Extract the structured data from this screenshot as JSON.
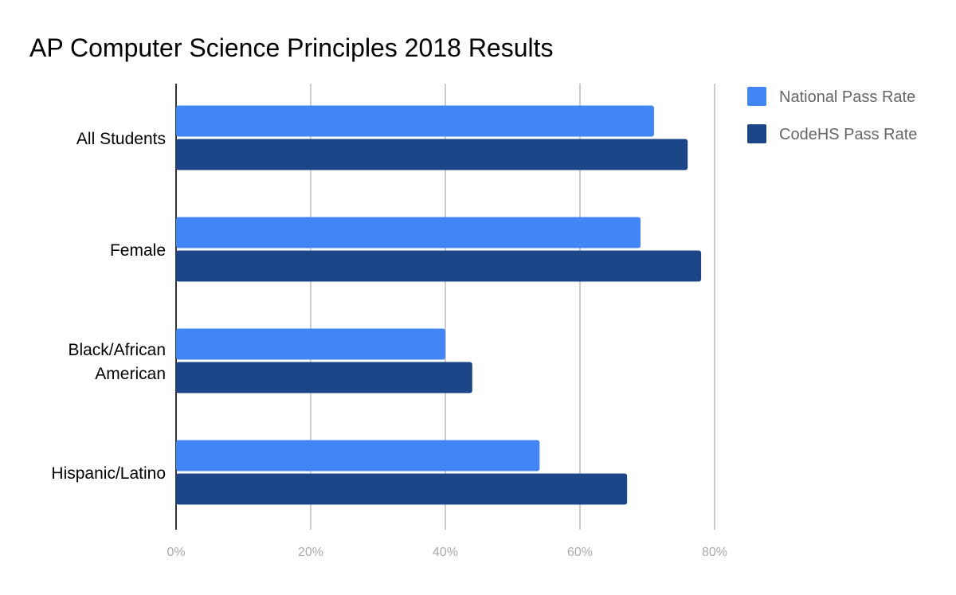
{
  "chart_data": {
    "type": "bar",
    "orientation": "horizontal",
    "title": "AP Computer Science Principles 2018 Results",
    "categories": [
      "All Students",
      "Female",
      "Black/African American",
      "Hispanic/Latino"
    ],
    "category_lines": [
      [
        "All Students"
      ],
      [
        "Female"
      ],
      [
        "Black/African",
        "American"
      ],
      [
        "Hispanic/Latino"
      ]
    ],
    "series": [
      {
        "name": "National Pass Rate",
        "color": "#4285f4",
        "values": [
          71,
          69,
          40,
          54
        ]
      },
      {
        "name": "CodeHS Pass Rate",
        "color": "#1c4587",
        "values": [
          76,
          78,
          44,
          67
        ]
      }
    ],
    "xlim": [
      0,
      90
    ],
    "xticks": [
      0,
      20,
      40,
      60,
      80
    ],
    "xtick_labels": [
      "0%",
      "20%",
      "40%",
      "60%",
      "80%"
    ],
    "grid": true,
    "legend": "right"
  }
}
